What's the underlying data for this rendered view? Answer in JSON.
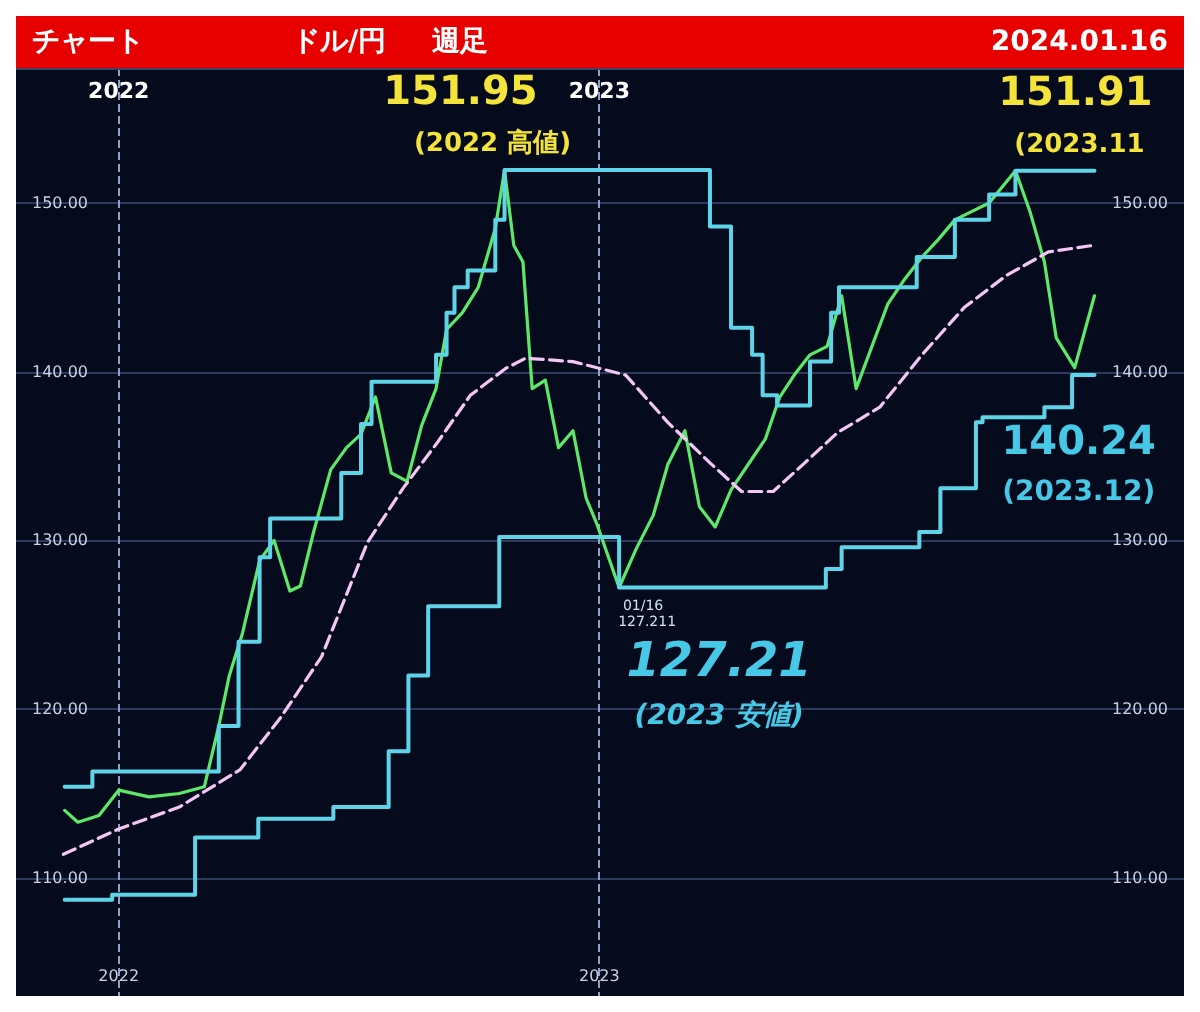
{
  "chart_data": {
    "type": "line",
    "title": "チャート",
    "subtitle": "ドル/円",
    "annotations": [
      "週足",
      "2024.01.16",
      {
        "text": "151.95",
        "x": "2022-10-21",
        "y": 151.95
      },
      "(2022 高値)",
      {
        "text": "151.91",
        "x": "2023-11-13",
        "y": 151.91
      },
      "(2023.11",
      {
        "text": "140.24",
        "x": "2023-12-28",
        "y": 140.24
      },
      "(2023.12)",
      {
        "text": "127.21",
        "x": "2023-01-16",
        "y": 127.21
      },
      "(2023 安値)",
      {
        "text": "01/16",
        "x": "2023-01-16",
        "y": 127.21
      },
      {
        "text": "127.211",
        "x": "2023-01-16",
        "y": 127.21
      }
    ],
    "xlim": [
      "2021-10-15",
      "2024-03-20"
    ],
    "xticks": [
      {
        "value": "2022-01-01",
        "label": "2022"
      },
      {
        "value": "2023-01-01",
        "label": "2023"
      }
    ],
    "x2lim": [
      "2021-10-15",
      "2024-03-20"
    ],
    "x2ticks": [
      {
        "value": "2022-01-01",
        "label": "2022"
      },
      {
        "value": "2023-01-01",
        "label": "2023"
      }
    ],
    "ylim": [
      103,
      158
    ],
    "yticks": [
      {
        "value": 110,
        "label": "110.00"
      },
      {
        "value": 120,
        "label": "120.00"
      },
      {
        "value": 130,
        "label": "130.00"
      },
      {
        "value": 140,
        "label": "140.00"
      },
      {
        "value": 150,
        "label": "150.00"
      }
    ],
    "y2lim": [
      103,
      158
    ],
    "y2ticks": [
      {
        "value": 110,
        "label": "110.00"
      },
      {
        "value": 120,
        "label": "120.00"
      },
      {
        "value": 130,
        "label": "130.00"
      },
      {
        "value": 140,
        "label": "140.00"
      },
      {
        "value": 150,
        "label": "150.00"
      }
    ],
    "grid": true,
    "marker": "none",
    "series": [
      {
        "color": "#5ee86a",
        "line_style": "solid",
        "x": [
          "2021-11-21",
          "2021-12-01",
          "2021-12-17",
          "2022-01-01",
          "2022-01-24",
          "2022-02-16",
          "2022-03-07",
          "2022-03-18",
          "2022-03-26",
          "2022-04-05",
          "2022-04-18",
          "2022-04-29",
          "2022-05-11",
          "2022-05-19",
          "2022-05-29",
          "2022-06-11",
          "2022-06-23",
          "2022-07-04",
          "2022-07-15",
          "2022-07-27",
          "2022-08-08",
          "2022-08-19",
          "2022-08-30",
          "2022-09-07",
          "2022-09-19",
          "2022-10-01",
          "2022-10-14",
          "2022-10-21",
          "2022-10-28",
          "2022-11-04",
          "2022-11-11",
          "2022-11-21",
          "2022-12-01",
          "2022-12-12",
          "2022-12-22",
          "2022-12-30",
          "2023-01-16",
          "2023-01-29",
          "2023-02-11",
          "2023-02-22",
          "2023-03-07",
          "2023-03-18",
          "2023-03-30",
          "2023-04-11",
          "2023-04-24",
          "2023-05-07",
          "2023-05-18",
          "2023-05-29",
          "2023-06-10",
          "2023-06-23",
          "2023-07-04",
          "2023-07-15",
          "2023-07-27",
          "2023-08-08",
          "2023-08-21",
          "2023-09-03",
          "2023-09-15",
          "2023-09-28",
          "2023-10-11",
          "2023-10-24",
          "2023-11-13",
          "2023-11-24",
          "2023-12-05",
          "2023-12-14",
          "2023-12-28",
          "2024-01-12"
        ],
        "values": [
          114.0,
          113.3,
          113.7,
          115.2,
          114.8,
          115.0,
          115.4,
          119.0,
          122.0,
          124.5,
          128.8,
          130.0,
          127.0,
          127.3,
          130.5,
          134.2,
          135.5,
          136.3,
          138.5,
          134.0,
          133.5,
          136.8,
          139.0,
          142.5,
          143.5,
          145.0,
          148.5,
          151.95,
          147.5,
          146.5,
          139.0,
          139.5,
          135.5,
          136.5,
          132.5,
          131.0,
          127.21,
          129.5,
          131.5,
          134.5,
          136.5,
          132.0,
          130.8,
          133.0,
          134.5,
          136.0,
          138.5,
          139.8,
          141.0,
          141.5,
          144.5,
          139.0,
          141.5,
          144.0,
          145.5,
          146.8,
          147.8,
          149.0,
          149.5,
          150.0,
          151.91,
          149.5,
          146.5,
          142.0,
          140.24,
          144.5
        ]
      },
      {
        "type": "step",
        "color": "#5fd4e8",
        "line_style": "solid",
        "x": [
          "2021-11-21",
          "2021-12-08",
          "2021-12-12",
          "2022-03-07",
          "2022-03-18",
          "2022-04-02",
          "2022-04-18",
          "2022-04-26",
          "2022-05-29",
          "2022-06-19",
          "2022-07-04",
          "2022-07-12",
          "2022-08-24",
          "2022-08-30",
          "2022-09-07",
          "2022-09-13",
          "2022-09-23",
          "2022-10-07",
          "2022-10-14",
          "2022-10-21",
          "2023-03-18",
          "2023-03-26",
          "2023-04-11",
          "2023-04-27",
          "2023-05-05",
          "2023-05-16",
          "2023-05-21",
          "2023-06-10",
          "2023-06-26",
          "2023-07-02",
          "2023-08-08",
          "2023-08-30",
          "2023-09-28",
          "2023-10-24",
          "2023-11-13",
          "2024-01-12"
        ],
        "values": [
          115.4,
          115.4,
          116.3,
          116.3,
          119.0,
          124.0,
          129.0,
          131.3,
          131.3,
          134.0,
          136.9,
          139.4,
          139.4,
          141.0,
          143.5,
          145.0,
          146.0,
          146.0,
          149.0,
          151.95,
          151.95,
          148.6,
          142.6,
          141.0,
          138.6,
          138.0,
          138.0,
          140.6,
          143.5,
          145.0,
          145.0,
          146.8,
          149.0,
          150.5,
          151.91,
          151.91
        ]
      },
      {
        "type": "step",
        "color": "#5fd4e8",
        "line_style": "solid",
        "x": [
          "2021-11-21",
          "2021-12-20",
          "2021-12-27",
          "2022-02-05",
          "2022-02-28",
          "2022-04-14",
          "2022-04-17",
          "2022-06-06",
          "2022-06-13",
          "2022-07-17",
          "2022-07-25",
          "2022-08-09",
          "2022-08-24",
          "2022-10-10",
          "2022-10-17",
          "2023-01-09",
          "2023-01-16",
          "2023-06-14",
          "2023-06-22",
          "2023-07-04",
          "2023-08-17",
          "2023-09-01",
          "2023-09-17",
          "2023-10-14",
          "2023-10-19",
          "2023-11-15",
          "2023-12-05",
          "2023-12-26",
          "2024-01-12"
        ],
        "values": [
          108.7,
          108.7,
          109.0,
          109.0,
          112.4,
          112.4,
          113.5,
          113.5,
          114.2,
          114.2,
          117.5,
          122.0,
          126.1,
          126.1,
          130.2,
          130.2,
          127.21,
          127.21,
          128.3,
          129.6,
          129.6,
          130.5,
          133.1,
          137.0,
          137.3,
          137.3,
          137.9,
          139.8,
          139.8
        ]
      },
      {
        "color": "#f4c6f4",
        "line_style": "dashed",
        "x": [
          "2021-11-20",
          "2022-01-01",
          "2022-02-16",
          "2022-04-03",
          "2022-05-04",
          "2022-06-04",
          "2022-07-09",
          "2022-08-05",
          "2022-08-31",
          "2022-09-25",
          "2022-10-22",
          "2022-11-06",
          "2022-12-12",
          "2023-01-21",
          "2023-02-22",
          "2023-03-26",
          "2023-04-19",
          "2023-05-13",
          "2023-06-06",
          "2023-07-01",
          "2023-08-02",
          "2023-09-03",
          "2023-10-05",
          "2023-11-06",
          "2023-12-08",
          "2024-01-12"
        ],
        "values": [
          111.4,
          112.9,
          114.2,
          116.4,
          119.5,
          123.1,
          129.9,
          133.1,
          135.8,
          138.6,
          140.2,
          140.8,
          140.6,
          139.8,
          137.0,
          134.6,
          132.9,
          132.9,
          134.6,
          136.4,
          137.9,
          141.0,
          143.8,
          145.7,
          147.1,
          147.5
        ]
      }
    ]
  }
}
